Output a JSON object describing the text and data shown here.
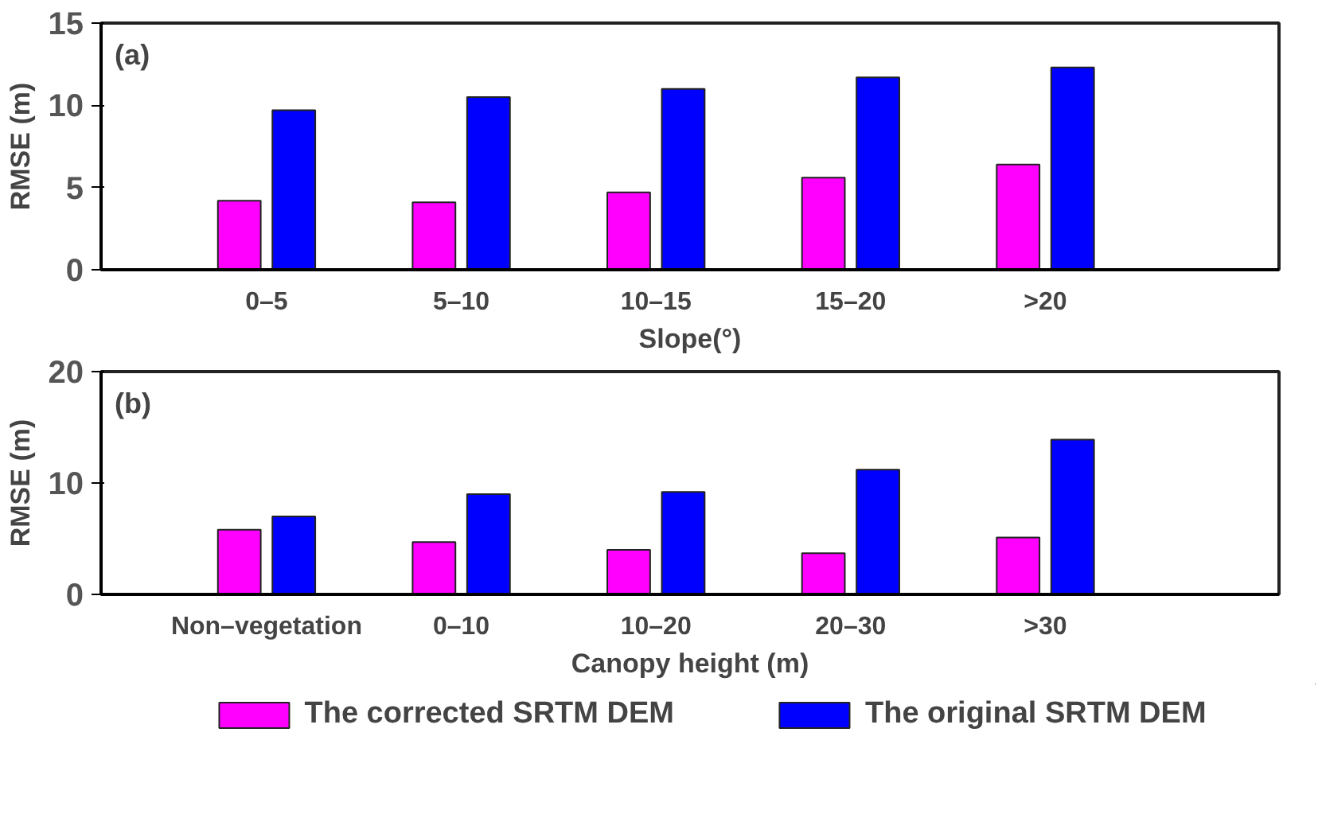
{
  "chart_data": [
    {
      "type": "bar",
      "annotations": [
        "(a)"
      ],
      "xlabel": "Slope(°)",
      "ylabel": "RMSE (m)",
      "categories": [
        "0–5",
        "5–10",
        "10–15",
        "15–20",
        ">20"
      ],
      "ylim": [
        0,
        15
      ],
      "yticks": [
        0,
        5,
        10,
        15
      ],
      "grid": false,
      "series": [
        {
          "color": "#ff00ff",
          "values": [
            4.2,
            4.1,
            4.7,
            5.6,
            6.4
          ]
        },
        {
          "color": "#0000ff",
          "values": [
            9.7,
            10.5,
            11.0,
            11.7,
            12.3
          ]
        }
      ]
    },
    {
      "type": "bar",
      "annotations": [
        "(b)"
      ],
      "xlabel": "Canopy height (m)",
      "ylabel": "RMSE (m)",
      "categories": [
        "Non–vegetation",
        "0–10",
        "10–20",
        "20–30",
        ">30"
      ],
      "ylim": [
        0,
        20
      ],
      "yticks": [
        0,
        10,
        20
      ],
      "grid": false,
      "legend": "bottom",
      "series": [
        {
          "name": "The corrected SRTM DEM",
          "color": "#ff00ff",
          "values": [
            5.8,
            4.7,
            4.0,
            3.7,
            5.1
          ]
        },
        {
          "name": "The original SRTM DEM",
          "color": "#0000ff",
          "values": [
            7,
            9,
            9.2,
            11.2,
            13.9
          ]
        }
      ]
    }
  ]
}
